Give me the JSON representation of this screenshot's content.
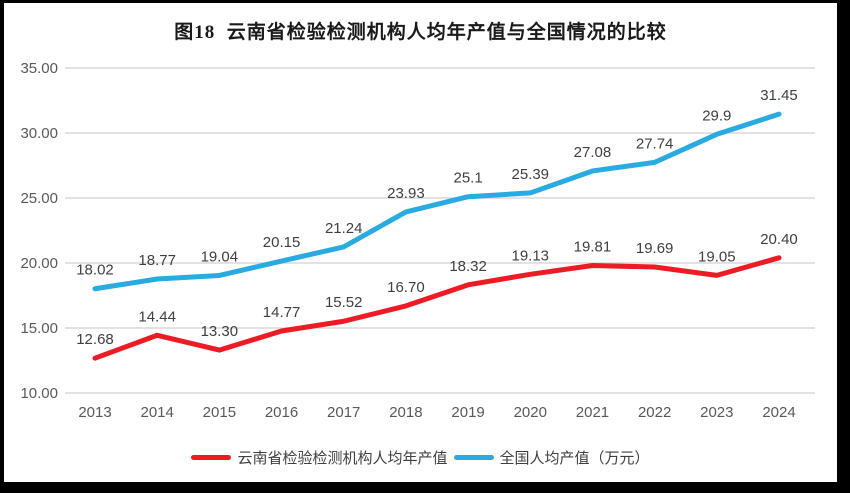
{
  "chart_data": {
    "type": "line",
    "title": "图18  云南省检验检测机构人均年产值与全国情况的比较",
    "categories": [
      "2013",
      "2014",
      "2015",
      "2016",
      "2017",
      "2018",
      "2019",
      "2020",
      "2021",
      "2022",
      "2023",
      "2024"
    ],
    "y_ticks": [
      "35.00",
      "30.00",
      "25.00",
      "20.00",
      "15.00",
      "10.00"
    ],
    "ylim": [
      10,
      35
    ],
    "y_tick_step": 5,
    "grid": true,
    "legend_position": "bottom",
    "xlabel": "",
    "ylabel": "",
    "series": [
      {
        "name": "云南省检验检测机构人均年产值",
        "color": "#ED1C24",
        "values": [
          12.68,
          14.44,
          13.3,
          14.77,
          15.52,
          16.7,
          18.32,
          19.13,
          19.81,
          19.69,
          19.05,
          20.4
        ],
        "labels": [
          "12.68",
          "14.44",
          "13.30",
          "14.77",
          "15.52",
          "16.70",
          "18.32",
          "19.13",
          "19.81",
          "19.69",
          "19.05",
          "20.40"
        ]
      },
      {
        "name": "全国人均产值（万元）",
        "color": "#29ABE2",
        "values": [
          18.02,
          18.77,
          19.04,
          20.15,
          21.24,
          23.93,
          25.1,
          25.39,
          27.08,
          27.74,
          29.9,
          31.45
        ],
        "labels": [
          "18.02",
          "18.77",
          "19.04",
          "20.15",
          "21.24",
          "23.93",
          "25.1",
          "25.39",
          "27.08",
          "27.74",
          "29.9",
          "31.45"
        ]
      }
    ],
    "colors": {
      "grid_line": "#D9D9D9",
      "axis_text": "#595959",
      "data_label_text": "#3f3f3f",
      "title_text": "#1a1a1a",
      "frame": "#000000",
      "background": "#ffffff"
    }
  }
}
